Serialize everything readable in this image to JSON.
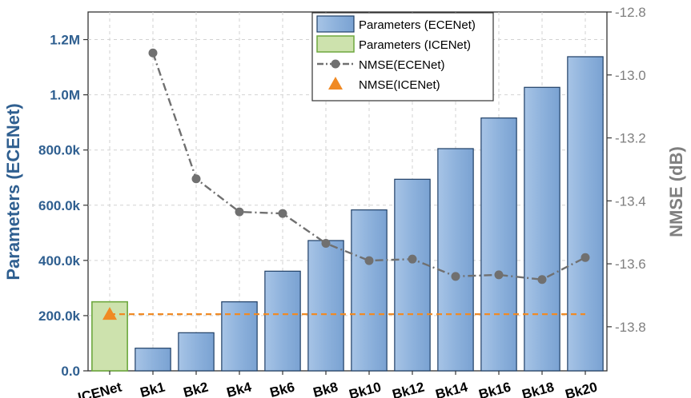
{
  "chart_data": {
    "type": "bar",
    "categories": [
      "ICENet",
      "Bk1",
      "Bk2",
      "Bk4",
      "Bk6",
      "Bk8",
      "Bk10",
      "Bk12",
      "Bk14",
      "Bk16",
      "Bk18",
      "Bk20"
    ],
    "series": [
      {
        "name": "Parameters (ECENet)",
        "type": "bar",
        "axis": "left",
        "values": [
          null,
          82000,
          138000,
          250000,
          361000,
          472000,
          583000,
          694000,
          805000,
          916000,
          1027000,
          1138000
        ]
      },
      {
        "name": "Parameters (ICENet)",
        "type": "bar",
        "axis": "left",
        "values": [
          250000,
          null,
          null,
          null,
          null,
          null,
          null,
          null,
          null,
          null,
          null,
          null
        ]
      },
      {
        "name": "NMSE(ECENet)",
        "type": "line",
        "axis": "right",
        "values": [
          null,
          -12.93,
          -13.33,
          -13.435,
          -13.44,
          -13.535,
          -13.59,
          -13.585,
          -13.64,
          -13.635,
          -13.65,
          -13.58
        ]
      },
      {
        "name": "NMSE(ICENet)",
        "type": "marker+reference-line",
        "axis": "right",
        "values": [
          -13.76,
          -13.76,
          -13.76,
          -13.76,
          -13.76,
          -13.76,
          -13.76,
          -13.76,
          -13.76,
          -13.76,
          -13.76,
          -13.76
        ]
      }
    ],
    "ylabel": "Parameters (ECENet)",
    "y2label": "NMSE (dB)",
    "ylim": [
      0,
      1300000
    ],
    "y2lim": [
      -13.94,
      -12.8
    ],
    "yticks": [
      0,
      200000,
      400000,
      600000,
      800000,
      1000000,
      1200000
    ],
    "ytick_labels": [
      "0.0",
      "200.0k",
      "400.0k",
      "600.0k",
      "800.0k",
      "1.0M",
      "1.2M"
    ],
    "y2ticks": [
      -12.8,
      -13.0,
      -13.2,
      -13.4,
      -13.6,
      -13.8
    ],
    "y2tick_labels": [
      "-12.8",
      "-13.0",
      "-13.2",
      "-13.4",
      "-13.6",
      "-13.8"
    ],
    "grid": true,
    "legend_position": "top-center",
    "colors": {
      "ecenet_bar": "#8aaed8",
      "ecenet_bar_edge": "#1f3f66",
      "icenet_bar": "#cde2ad",
      "icenet_bar_edge": "#6ea83f",
      "nmse_ecenet": "#707070",
      "nmse_icenet": "#f08a24",
      "left_axis": "#2f5f90",
      "right_axis": "#7f7f7f"
    }
  }
}
